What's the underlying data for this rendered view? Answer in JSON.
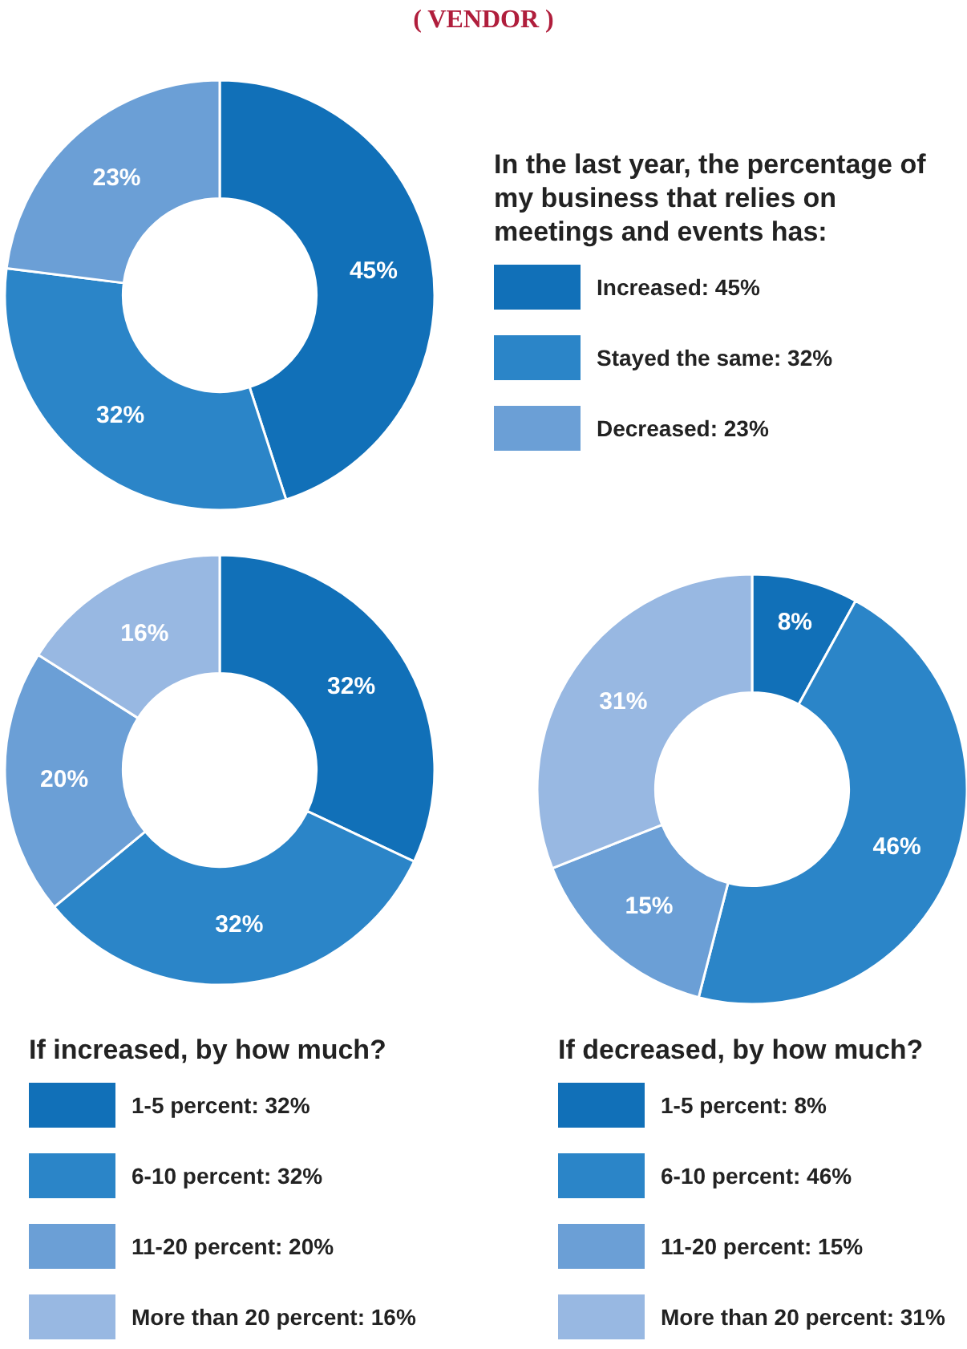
{
  "chart_data": [
    {
      "type": "donut",
      "subtitle": "( VENDOR )",
      "title": "In the last year, the percentage of my business that relies on meetings and events has:",
      "categories": [
        "Increased",
        "Stayed the same",
        "Decreased"
      ],
      "values": [
        45,
        32,
        23
      ],
      "value_labels": [
        "45%",
        "32%",
        "23%"
      ],
      "colors": [
        "#1170b8",
        "#2b85c8",
        "#6b9fd6"
      ],
      "legend": "right"
    },
    {
      "type": "donut",
      "title": "If increased, by how much?",
      "categories": [
        "1-5 percent",
        "6-10 percent",
        "11-20 percent",
        "More than 20 percent"
      ],
      "values": [
        32,
        32,
        20,
        16
      ],
      "value_labels": [
        "32%",
        "32%",
        "20%",
        "16%"
      ],
      "colors": [
        "#1170b8",
        "#2b85c8",
        "#6b9fd6",
        "#98b8e2"
      ],
      "legend": "bottom"
    },
    {
      "type": "donut",
      "title": "If decreased, by how much?",
      "categories": [
        "1-5 percent",
        "6-10 percent",
        "11-20 percent",
        "More than 20 percent"
      ],
      "values": [
        8,
        46,
        15,
        31
      ],
      "value_labels": [
        "8%",
        "46%",
        "15%",
        "31%"
      ],
      "colors": [
        "#1170b8",
        "#2b85c8",
        "#6b9fd6",
        "#98b8e2"
      ],
      "legend": "bottom"
    }
  ]
}
